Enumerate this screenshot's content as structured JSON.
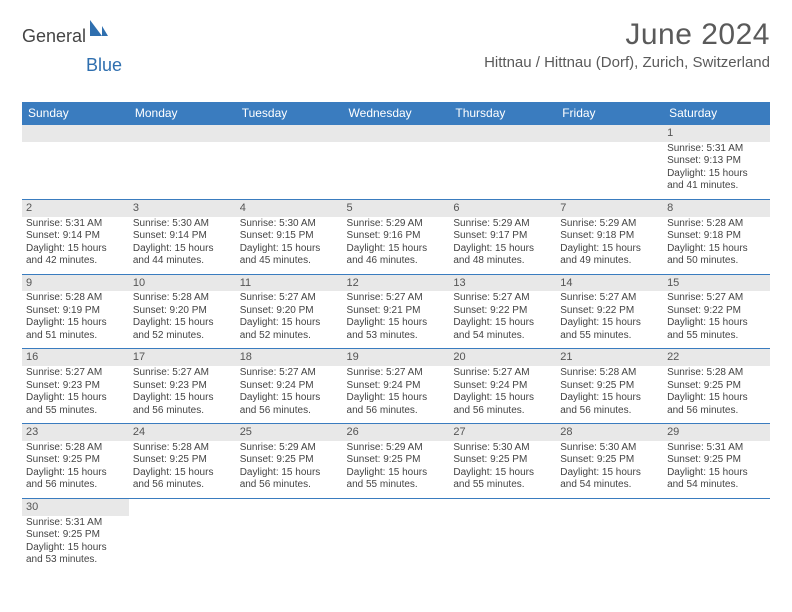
{
  "logo": {
    "part1": "General",
    "part2": "Blue"
  },
  "title": "June 2024",
  "location": "Hittnau / Hittnau (Dorf), Zurich, Switzerland",
  "colors": {
    "header_bg": "#3a7cbf",
    "header_text": "#ffffff",
    "daynum_bg": "#e8e8e8",
    "border": "#3a7cbf",
    "text": "#444444"
  },
  "weekdays": [
    "Sunday",
    "Monday",
    "Tuesday",
    "Wednesday",
    "Thursday",
    "Friday",
    "Saturday"
  ],
  "weeks": [
    [
      null,
      null,
      null,
      null,
      null,
      null,
      {
        "n": "1",
        "sr": "5:31 AM",
        "ss": "9:13 PM",
        "dl": "15 hours and 41 minutes."
      }
    ],
    [
      {
        "n": "2",
        "sr": "5:31 AM",
        "ss": "9:14 PM",
        "dl": "15 hours and 42 minutes."
      },
      {
        "n": "3",
        "sr": "5:30 AM",
        "ss": "9:14 PM",
        "dl": "15 hours and 44 minutes."
      },
      {
        "n": "4",
        "sr": "5:30 AM",
        "ss": "9:15 PM",
        "dl": "15 hours and 45 minutes."
      },
      {
        "n": "5",
        "sr": "5:29 AM",
        "ss": "9:16 PM",
        "dl": "15 hours and 46 minutes."
      },
      {
        "n": "6",
        "sr": "5:29 AM",
        "ss": "9:17 PM",
        "dl": "15 hours and 48 minutes."
      },
      {
        "n": "7",
        "sr": "5:29 AM",
        "ss": "9:18 PM",
        "dl": "15 hours and 49 minutes."
      },
      {
        "n": "8",
        "sr": "5:28 AM",
        "ss": "9:18 PM",
        "dl": "15 hours and 50 minutes."
      }
    ],
    [
      {
        "n": "9",
        "sr": "5:28 AM",
        "ss": "9:19 PM",
        "dl": "15 hours and 51 minutes."
      },
      {
        "n": "10",
        "sr": "5:28 AM",
        "ss": "9:20 PM",
        "dl": "15 hours and 52 minutes."
      },
      {
        "n": "11",
        "sr": "5:27 AM",
        "ss": "9:20 PM",
        "dl": "15 hours and 52 minutes."
      },
      {
        "n": "12",
        "sr": "5:27 AM",
        "ss": "9:21 PM",
        "dl": "15 hours and 53 minutes."
      },
      {
        "n": "13",
        "sr": "5:27 AM",
        "ss": "9:22 PM",
        "dl": "15 hours and 54 minutes."
      },
      {
        "n": "14",
        "sr": "5:27 AM",
        "ss": "9:22 PM",
        "dl": "15 hours and 55 minutes."
      },
      {
        "n": "15",
        "sr": "5:27 AM",
        "ss": "9:22 PM",
        "dl": "15 hours and 55 minutes."
      }
    ],
    [
      {
        "n": "16",
        "sr": "5:27 AM",
        "ss": "9:23 PM",
        "dl": "15 hours and 55 minutes."
      },
      {
        "n": "17",
        "sr": "5:27 AM",
        "ss": "9:23 PM",
        "dl": "15 hours and 56 minutes."
      },
      {
        "n": "18",
        "sr": "5:27 AM",
        "ss": "9:24 PM",
        "dl": "15 hours and 56 minutes."
      },
      {
        "n": "19",
        "sr": "5:27 AM",
        "ss": "9:24 PM",
        "dl": "15 hours and 56 minutes."
      },
      {
        "n": "20",
        "sr": "5:27 AM",
        "ss": "9:24 PM",
        "dl": "15 hours and 56 minutes."
      },
      {
        "n": "21",
        "sr": "5:28 AM",
        "ss": "9:25 PM",
        "dl": "15 hours and 56 minutes."
      },
      {
        "n": "22",
        "sr": "5:28 AM",
        "ss": "9:25 PM",
        "dl": "15 hours and 56 minutes."
      }
    ],
    [
      {
        "n": "23",
        "sr": "5:28 AM",
        "ss": "9:25 PM",
        "dl": "15 hours and 56 minutes."
      },
      {
        "n": "24",
        "sr": "5:28 AM",
        "ss": "9:25 PM",
        "dl": "15 hours and 56 minutes."
      },
      {
        "n": "25",
        "sr": "5:29 AM",
        "ss": "9:25 PM",
        "dl": "15 hours and 56 minutes."
      },
      {
        "n": "26",
        "sr": "5:29 AM",
        "ss": "9:25 PM",
        "dl": "15 hours and 55 minutes."
      },
      {
        "n": "27",
        "sr": "5:30 AM",
        "ss": "9:25 PM",
        "dl": "15 hours and 55 minutes."
      },
      {
        "n": "28",
        "sr": "5:30 AM",
        "ss": "9:25 PM",
        "dl": "15 hours and 54 minutes."
      },
      {
        "n": "29",
        "sr": "5:31 AM",
        "ss": "9:25 PM",
        "dl": "15 hours and 54 minutes."
      }
    ],
    [
      {
        "n": "30",
        "sr": "5:31 AM",
        "ss": "9:25 PM",
        "dl": "15 hours and 53 minutes."
      },
      null,
      null,
      null,
      null,
      null,
      null
    ]
  ],
  "labels": {
    "sunrise": "Sunrise:",
    "sunset": "Sunset:",
    "daylight": "Daylight:"
  }
}
